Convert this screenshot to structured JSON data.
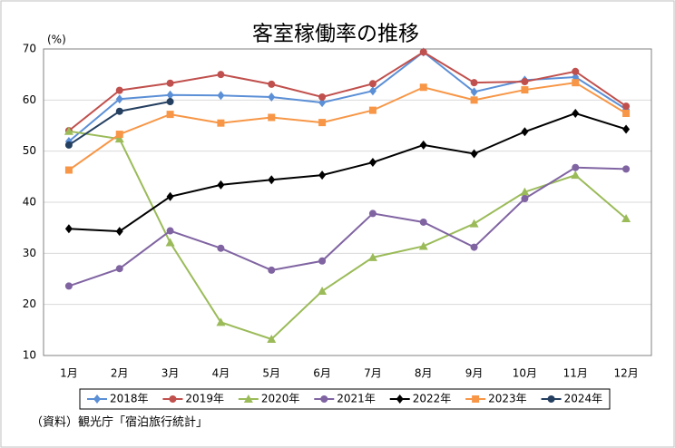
{
  "chart_data": {
    "type": "line",
    "title": "客室稼働率の推移",
    "y_unit": "(%)",
    "source": "（資料）観光庁「宿泊旅行統計」",
    "categories": [
      "1月",
      "2月",
      "3月",
      "4月",
      "5月",
      "6月",
      "7月",
      "8月",
      "9月",
      "10月",
      "11月",
      "12月"
    ],
    "ylim": [
      10,
      70
    ],
    "yticks": [
      10,
      20,
      30,
      40,
      50,
      60,
      70
    ],
    "grid": true,
    "legend": "bottom",
    "series": [
      {
        "name": "2018年",
        "color": "#5b8fd6",
        "marker": "diamond",
        "values": [
          51.9,
          60.2,
          61.0,
          60.9,
          60.6,
          59.5,
          61.8,
          69.4,
          61.6,
          63.9,
          64.5,
          58.2
        ]
      },
      {
        "name": "2019年",
        "color": "#c0504d",
        "marker": "circle",
        "values": [
          54.0,
          61.9,
          63.3,
          65.0,
          63.1,
          60.6,
          63.2,
          69.4,
          63.4,
          63.6,
          65.6,
          58.8
        ]
      },
      {
        "name": "2020年",
        "color": "#9bbb59",
        "marker": "triangle",
        "values": [
          53.9,
          52.4,
          32.1,
          16.5,
          13.2,
          22.6,
          29.2,
          31.4,
          35.8,
          42.0,
          45.3,
          36.8
        ]
      },
      {
        "name": "2021年",
        "color": "#8064a2",
        "marker": "circle",
        "values": [
          23.6,
          27.0,
          34.4,
          31.0,
          26.7,
          28.5,
          37.8,
          36.1,
          31.2,
          40.7,
          46.8,
          46.5
        ]
      },
      {
        "name": "2022年",
        "color": "#000000",
        "marker": "diamond",
        "values": [
          34.8,
          34.3,
          41.1,
          43.4,
          44.4,
          45.3,
          47.8,
          51.2,
          49.5,
          53.8,
          57.4,
          54.3
        ]
      },
      {
        "name": "2023年",
        "color": "#f79646",
        "marker": "square",
        "values": [
          46.3,
          53.3,
          57.2,
          55.5,
          56.6,
          55.6,
          58.0,
          62.5,
          60.0,
          62.0,
          63.4,
          57.4
        ]
      },
      {
        "name": "2024年",
        "color": "#243f60",
        "marker": "circle",
        "values": [
          51.2,
          57.8,
          59.7,
          null,
          null,
          null,
          null,
          null,
          null,
          null,
          null,
          null
        ]
      }
    ]
  }
}
